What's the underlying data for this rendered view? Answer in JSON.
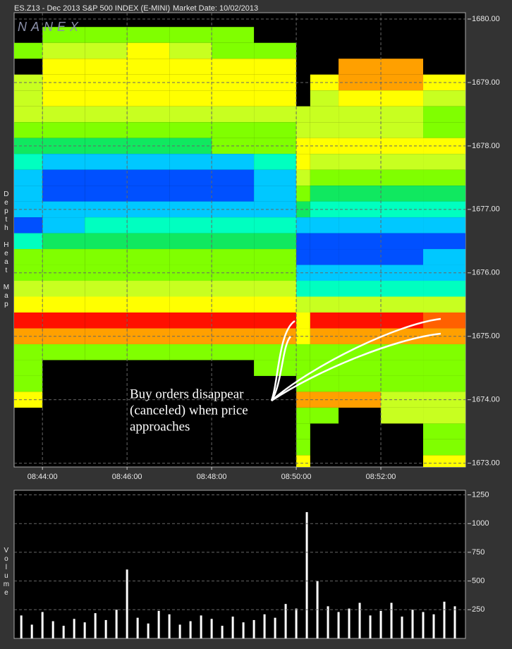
{
  "chart_data": [
    {
      "type": "heatmap",
      "title": "ES.Z13 - Dec 2013 S&P 500 INDEX (E-MINI)",
      "subtitle": "Market Date: 10/02/2013",
      "watermark": "NANEX",
      "ylabel": "Depth  Heat  Map",
      "annotation": [
        "Buy orders disappear",
        "(canceled) when price",
        "approaches"
      ],
      "xbins": [
        43.33,
        44,
        45,
        46,
        47,
        48,
        49,
        50,
        50.33,
        51,
        52,
        53,
        54
      ],
      "y": [
        1680,
        1679.75,
        1679.5,
        1679.25,
        1679,
        1678.75,
        1678.5,
        1678.25,
        1678,
        1677.75,
        1677.5,
        1677.25,
        1677,
        1676.75,
        1676.5,
        1676.25,
        1676,
        1675.75,
        1675.5,
        1675.25,
        1675,
        1674.75,
        1674.5,
        1674.25,
        1674,
        1673.75,
        1673.5,
        1673.25,
        1673
      ],
      "z": [
        [
          null,
          null,
          null,
          null,
          null,
          null,
          null,
          null,
          null,
          null,
          null,
          null
        ],
        [
          null,
          5,
          5,
          5,
          5,
          5,
          null,
          null,
          null,
          null,
          null,
          null
        ],
        [
          5,
          6,
          6,
          7,
          6,
          5,
          5,
          null,
          null,
          null,
          null,
          null
        ],
        [
          null,
          7,
          7,
          7,
          7,
          7,
          7,
          null,
          null,
          8,
          8,
          null
        ],
        [
          6,
          7,
          7,
          7,
          7,
          7,
          7,
          null,
          7,
          8,
          8,
          7
        ],
        [
          6,
          7,
          7,
          7,
          7,
          7,
          7,
          null,
          6,
          7,
          7,
          6
        ],
        [
          6,
          6,
          6,
          6,
          6,
          6,
          6,
          6,
          6,
          6,
          6,
          5
        ],
        [
          5,
          5,
          5,
          5,
          5,
          5,
          5,
          6,
          6,
          6,
          6,
          5
        ],
        [
          4,
          4,
          4,
          4,
          4,
          5,
          5,
          7,
          7,
          7,
          7,
          7
        ],
        [
          3,
          2,
          2,
          2,
          2,
          2,
          3,
          7,
          6,
          6,
          6,
          6
        ],
        [
          2,
          1,
          1,
          1,
          1,
          1,
          2,
          6,
          5,
          5,
          5,
          5
        ],
        [
          2,
          1,
          1,
          1,
          1,
          1,
          2,
          5,
          4,
          4,
          4,
          4
        ],
        [
          2,
          2,
          2,
          2,
          2,
          2,
          2,
          4,
          3,
          3,
          3,
          3
        ],
        [
          1,
          2,
          3,
          3,
          3,
          3,
          3,
          2,
          2,
          2,
          2,
          2
        ],
        [
          3,
          4,
          4,
          4,
          4,
          4,
          4,
          1,
          1,
          1,
          1,
          1
        ],
        [
          5,
          5,
          5,
          5,
          5,
          5,
          5,
          1,
          1,
          1,
          1,
          2
        ],
        [
          5,
          5,
          5,
          5,
          5,
          5,
          5,
          2,
          2,
          2,
          2,
          2
        ],
        [
          6,
          6,
          6,
          6,
          6,
          6,
          6,
          3,
          3,
          3,
          3,
          3
        ],
        [
          7,
          7,
          7,
          7,
          7,
          7,
          7,
          6,
          6,
          6,
          6,
          6
        ],
        [
          10,
          10,
          10,
          10,
          10,
          10,
          10,
          7,
          10,
          10,
          10,
          9
        ],
        [
          8,
          8,
          8,
          8,
          8,
          8,
          8,
          7,
          8,
          8,
          8,
          8
        ],
        [
          5,
          5,
          5,
          5,
          5,
          5,
          5,
          5,
          5,
          5,
          5,
          5
        ],
        [
          5,
          null,
          null,
          null,
          null,
          null,
          5,
          5,
          5,
          5,
          5,
          5
        ],
        [
          5,
          null,
          null,
          null,
          null,
          null,
          null,
          5,
          5,
          5,
          5,
          5
        ],
        [
          7,
          null,
          null,
          null,
          null,
          null,
          null,
          8,
          8,
          8,
          6,
          6
        ],
        [
          null,
          null,
          null,
          null,
          null,
          null,
          null,
          5,
          5,
          null,
          6,
          6
        ],
        [
          null,
          null,
          null,
          null,
          null,
          null,
          null,
          5,
          null,
          null,
          null,
          5
        ],
        [
          null,
          null,
          null,
          null,
          null,
          null,
          null,
          5,
          null,
          null,
          null,
          5
        ],
        [
          null,
          null,
          null,
          null,
          null,
          null,
          null,
          7,
          null,
          null,
          null,
          7
        ]
      ],
      "colorscale": [
        "#0010e0",
        "#0050ff",
        "#00c8ff",
        "#00ffc0",
        "#10e860",
        "#80ff00",
        "#c8ff20",
        "#ffff00",
        "#ffa000",
        "#ff6000",
        "#ff1000"
      ],
      "xlim": [
        43.33,
        54
      ],
      "xticks": [
        {
          "value": 44,
          "label": "08:44:00"
        },
        {
          "value": 46,
          "label": "08:46:00"
        },
        {
          "value": 48,
          "label": "08:48:00"
        },
        {
          "value": 50,
          "label": "08:50:00"
        },
        {
          "value": 52,
          "label": "08:52:00"
        }
      ],
      "ylim": [
        1672.94,
        1680.1
      ],
      "yticks": [
        {
          "value": 1673,
          "label": "1673.00"
        },
        {
          "value": 1674,
          "label": "1674.00"
        },
        {
          "value": 1675,
          "label": "1675.00"
        },
        {
          "value": 1676,
          "label": "1676.00"
        },
        {
          "value": 1677,
          "label": "1677.00"
        },
        {
          "value": 1678,
          "label": "1678.00"
        },
        {
          "value": 1679,
          "label": "1679.00"
        },
        {
          "value": 1680,
          "label": "1680.00"
        }
      ],
      "grid": true
    },
    {
      "type": "bar",
      "ylabel": "Volume",
      "color": "#ffffff",
      "x": [
        43.5,
        43.75,
        44,
        44.25,
        44.5,
        44.75,
        45,
        45.25,
        45.5,
        45.75,
        46,
        46.25,
        46.5,
        46.75,
        47,
        47.25,
        47.5,
        47.75,
        48,
        48.25,
        48.5,
        48.75,
        49,
        49.25,
        49.5,
        49.75,
        50,
        50.25,
        50.5,
        50.75,
        51,
        51.25,
        51.5,
        51.75,
        52,
        52.25,
        52.5,
        52.75,
        53,
        53.25,
        53.5,
        53.75
      ],
      "values": [
        200,
        120,
        230,
        150,
        110,
        170,
        140,
        220,
        160,
        250,
        600,
        180,
        130,
        240,
        210,
        120,
        150,
        200,
        170,
        110,
        190,
        140,
        160,
        210,
        180,
        300,
        260,
        1100,
        500,
        280,
        230,
        260,
        310,
        200,
        240,
        310,
        190,
        250,
        230,
        210,
        320,
        280
      ],
      "xlim": [
        43.33,
        54
      ],
      "ylim": [
        0,
        1290
      ],
      "yticks": [
        250,
        500,
        750,
        1000,
        1250
      ],
      "grid": true
    }
  ]
}
